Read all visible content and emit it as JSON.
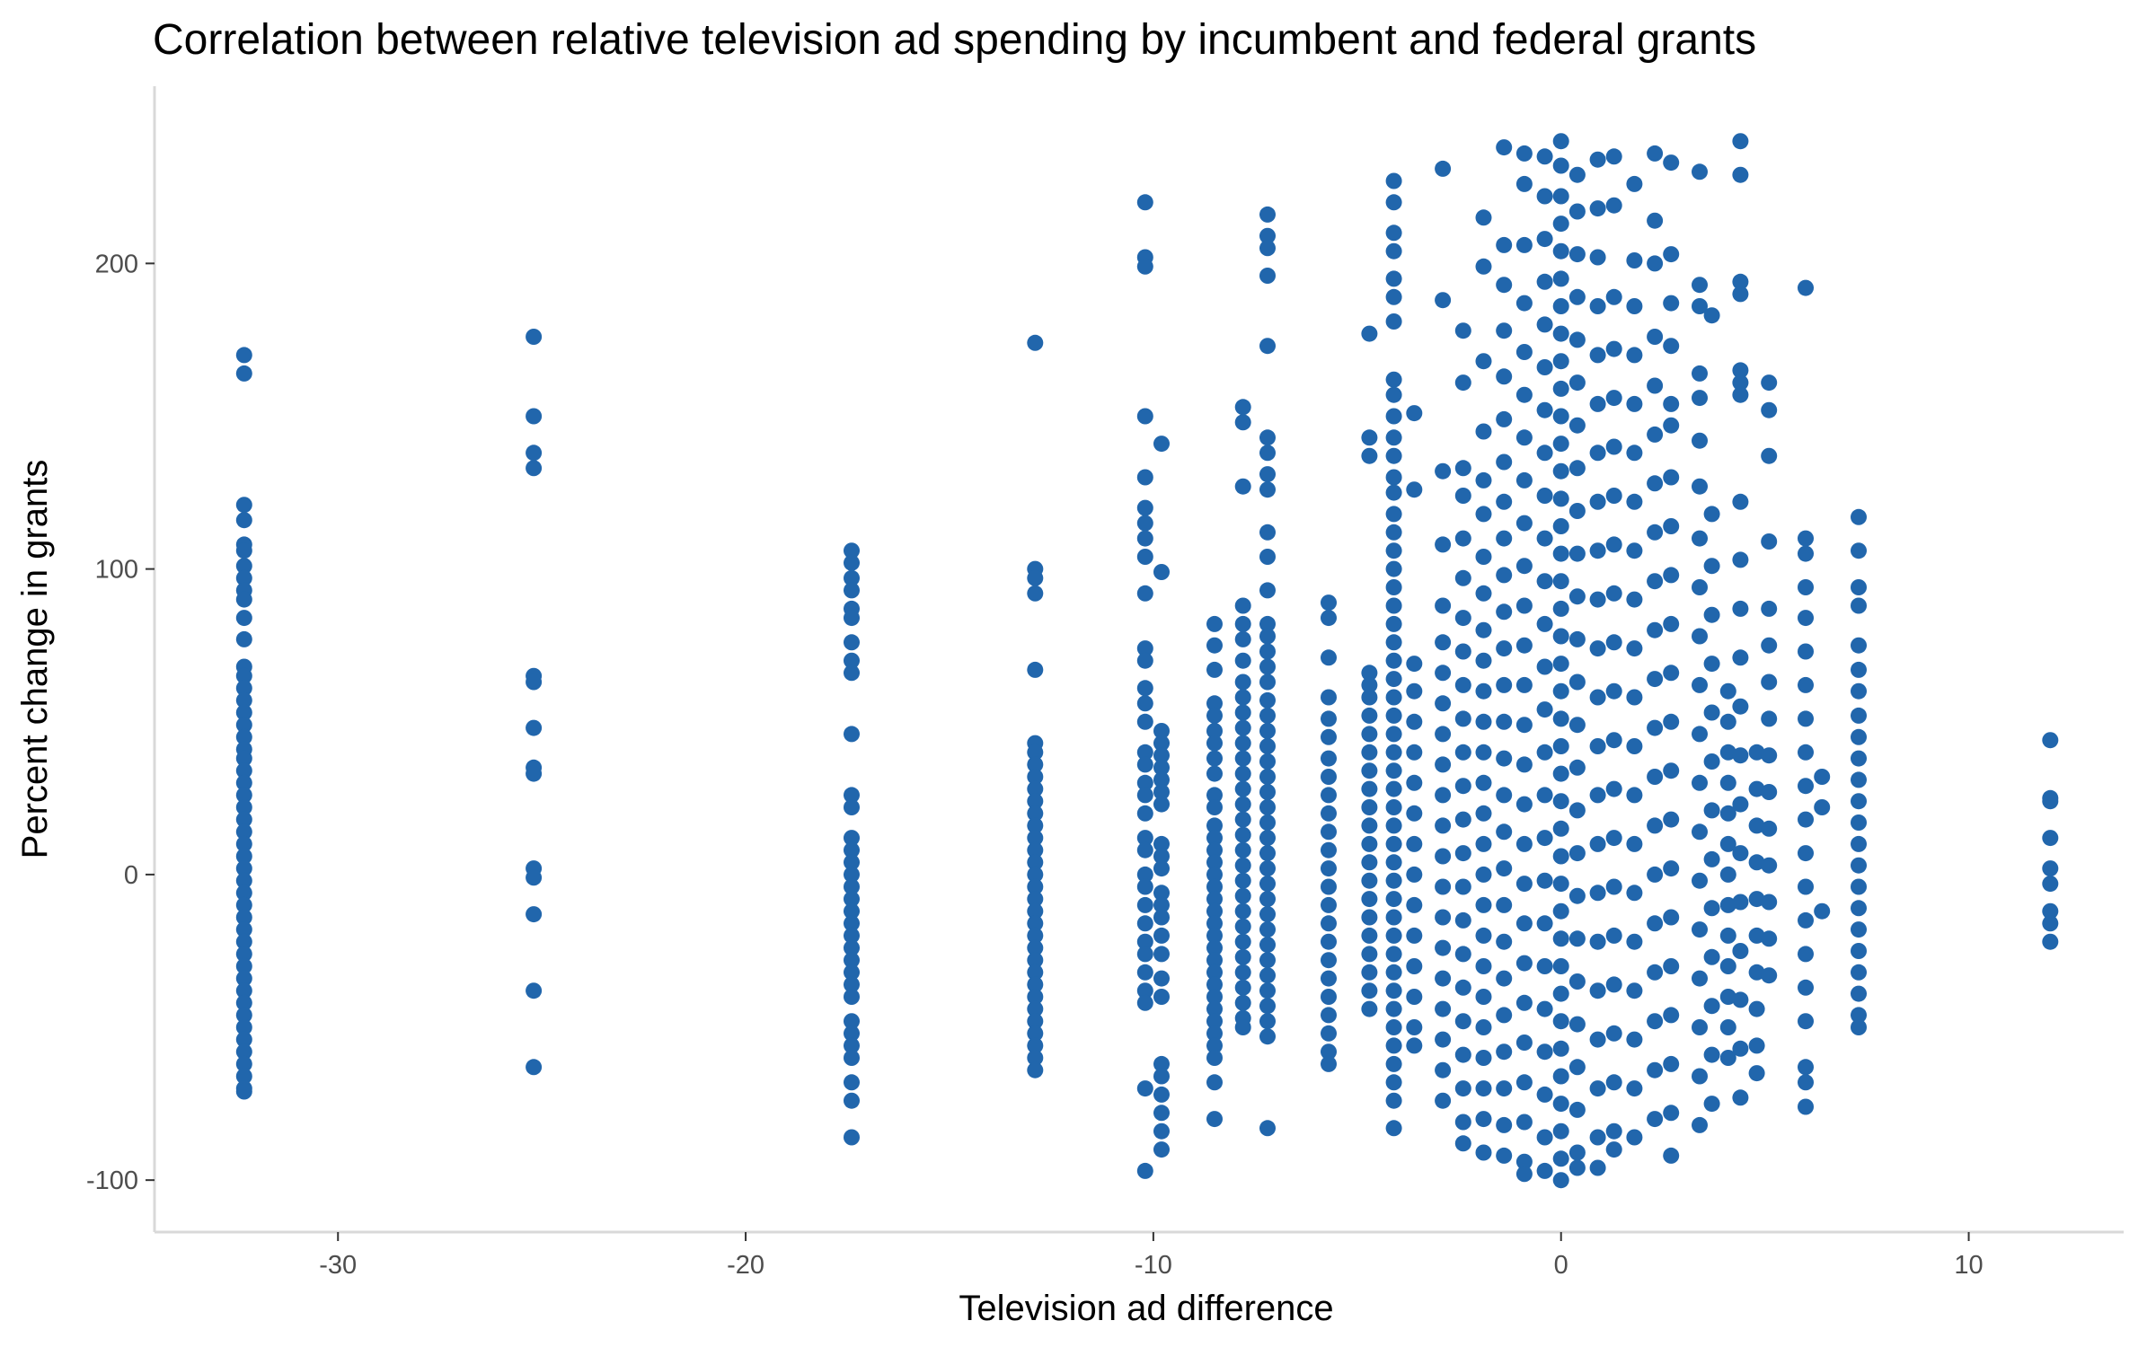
{
  "chart_data": {
    "type": "scatter",
    "title": "Correlation between relative television ad spending by incumbent and federal grants",
    "xlabel": "Television ad difference",
    "ylabel": "Percent change in grants",
    "xlim": [
      -34.5,
      13.8
    ],
    "ylim": [
      -117,
      258
    ],
    "x_ticks": [
      -30,
      -20,
      -10,
      0,
      10
    ],
    "y_ticks": [
      -100,
      0,
      100,
      200
    ],
    "x_tick_labels": [
      "-30",
      "-20",
      "-10",
      "0",
      "10"
    ],
    "y_tick_labels": [
      "-100",
      "0",
      "100",
      "200"
    ],
    "grid": false,
    "legend": "none",
    "point_color": "#2166ac",
    "columns": [
      {
        "x": -32.3,
        "y": [
          170,
          164,
          121,
          116,
          108,
          106,
          101,
          97,
          93,
          90,
          84,
          77,
          68,
          65,
          61,
          57,
          53,
          49,
          45,
          41,
          38,
          34,
          30,
          26,
          22,
          18,
          14,
          10,
          6,
          2,
          -2,
          -6,
          -10,
          -14,
          -18,
          -22,
          -26,
          -30,
          -34,
          -38,
          -42,
          -46,
          -50,
          -54,
          -58,
          -62,
          -66,
          -70,
          -71
        ]
      },
      {
        "x": -25.2,
        "y": [
          176,
          150,
          138,
          133,
          65,
          63,
          48,
          35,
          33,
          2,
          -1,
          -13,
          -38,
          -63
        ]
      },
      {
        "x": -17.4,
        "y": [
          106,
          102,
          97,
          93,
          87,
          84,
          76,
          70,
          66,
          46,
          26,
          22,
          12,
          8,
          4,
          0,
          -4,
          -8,
          -12,
          -16,
          -20,
          -24,
          -28,
          -32,
          -36,
          -40,
          -48,
          -52,
          -56,
          -60,
          -68,
          -74,
          -86
        ]
      },
      {
        "x": -12.9,
        "y": [
          174,
          100,
          97,
          92,
          67,
          43,
          40,
          36,
          32,
          28,
          24,
          20,
          16,
          12,
          8,
          4,
          0,
          -4,
          -8,
          -12,
          -16,
          -20,
          -24,
          -28,
          -32,
          -36,
          -40,
          -44,
          -48,
          -52,
          -56,
          -60,
          -64
        ]
      },
      {
        "x": -10.2,
        "y": [
          220,
          202,
          199,
          150,
          130,
          120,
          115,
          110,
          104,
          92,
          74,
          70,
          61,
          56,
          50,
          40,
          36,
          30,
          26,
          20,
          12,
          8,
          0,
          -4,
          -10,
          -16,
          -22,
          -26,
          -32,
          -38,
          -42,
          -70,
          -97
        ]
      },
      {
        "x": -9.8,
        "y": [
          141,
          99,
          47,
          43,
          39,
          35,
          31,
          27,
          23,
          10,
          6,
          2,
          -6,
          -10,
          -14,
          -20,
          -26,
          -34,
          -40,
          -62,
          -66,
          -72,
          -78,
          -84,
          -90
        ]
      },
      {
        "x": -8.5,
        "y": [
          82,
          75,
          67,
          56,
          52,
          47,
          43,
          38,
          33,
          26,
          22,
          16,
          12,
          8,
          4,
          0,
          -4,
          -8,
          -12,
          -16,
          -20,
          -24,
          -28,
          -32,
          -36,
          -40,
          -44,
          -48,
          -52,
          -56,
          -60,
          -68,
          -80
        ]
      },
      {
        "x": -7.8,
        "y": [
          153,
          148,
          127,
          88,
          82,
          77,
          70,
          63,
          58,
          53,
          48,
          43,
          38,
          33,
          28,
          23,
          18,
          13,
          8,
          3,
          -2,
          -7,
          -12,
          -17,
          -22,
          -27,
          -32,
          -37,
          -42,
          -47,
          -50
        ]
      },
      {
        "x": -7.2,
        "y": [
          216,
          209,
          205,
          196,
          173,
          143,
          138,
          131,
          126,
          112,
          104,
          93,
          82,
          78,
          73,
          68,
          63,
          57,
          52,
          47,
          42,
          37,
          32,
          27,
          22,
          17,
          12,
          7,
          2,
          -3,
          -8,
          -13,
          -18,
          -23,
          -28,
          -33,
          -38,
          -43,
          -48,
          -53,
          -83
        ]
      },
      {
        "x": -5.7,
        "y": [
          89,
          84,
          71,
          58,
          51,
          45,
          38,
          32,
          26,
          20,
          14,
          8,
          2,
          -4,
          -10,
          -16,
          -22,
          -28,
          -34,
          -40,
          -46,
          -52,
          -58,
          -62
        ]
      },
      {
        "x": -4.7,
        "y": [
          177,
          143,
          137,
          66,
          62,
          58,
          52,
          46,
          40,
          34,
          28,
          22,
          16,
          10,
          4,
          -2,
          -8,
          -14,
          -20,
          -26,
          -32,
          -38,
          -44
        ]
      },
      {
        "x": -4.1,
        "y": [
          227,
          220,
          210,
          204,
          195,
          189,
          181,
          162,
          157,
          150,
          143,
          137,
          130,
          125,
          118,
          112,
          106,
          100,
          94,
          88,
          82,
          76,
          70,
          64,
          58,
          52,
          46,
          40,
          34,
          28,
          22,
          16,
          10,
          4,
          -2,
          -8,
          -14,
          -20,
          -26,
          -32,
          -38,
          -44,
          -50,
          -56,
          -62,
          -68,
          -74,
          -83
        ]
      },
      {
        "x": -3.6,
        "y": [
          151,
          126,
          69,
          60,
          50,
          40,
          30,
          20,
          10,
          0,
          -10,
          -20,
          -30,
          -40,
          -50,
          -56
        ]
      },
      {
        "x": -2.9,
        "y": [
          231,
          188,
          132,
          108,
          88,
          76,
          66,
          56,
          46,
          36,
          26,
          16,
          6,
          -4,
          -14,
          -24,
          -34,
          -44,
          -54,
          -64,
          -74
        ]
      },
      {
        "x": -2.4,
        "y": [
          178,
          161,
          133,
          124,
          110,
          97,
          84,
          73,
          62,
          51,
          40,
          29,
          18,
          7,
          -4,
          -15,
          -26,
          -37,
          -48,
          -59,
          -70,
          -81,
          -88
        ]
      },
      {
        "x": -1.9,
        "y": [
          215,
          199,
          168,
          145,
          129,
          118,
          104,
          92,
          80,
          70,
          60,
          50,
          40,
          30,
          20,
          10,
          0,
          -10,
          -20,
          -30,
          -40,
          -50,
          -60,
          -70,
          -80,
          -91
        ]
      },
      {
        "x": -1.4,
        "y": [
          238,
          206,
          193,
          178,
          163,
          149,
          135,
          122,
          110,
          98,
          86,
          74,
          62,
          50,
          38,
          26,
          14,
          2,
          -10,
          -22,
          -34,
          -46,
          -58,
          -70,
          -82,
          -92
        ]
      },
      {
        "x": -0.9,
        "y": [
          236,
          226,
          206,
          187,
          171,
          157,
          143,
          129,
          115,
          101,
          88,
          75,
          62,
          49,
          36,
          23,
          10,
          -3,
          -16,
          -29,
          -42,
          -55,
          -68,
          -81,
          -94,
          -98
        ]
      },
      {
        "x": -0.4,
        "y": [
          235,
          222,
          208,
          194,
          180,
          166,
          152,
          138,
          124,
          110,
          96,
          82,
          68,
          54,
          40,
          26,
          12,
          -2,
          -16,
          -30,
          -44,
          -58,
          -72,
          -86,
          -97
        ]
      },
      {
        "x": 0,
        "y": [
          240,
          232,
          222,
          213,
          204,
          195,
          186,
          177,
          168,
          159,
          150,
          141,
          132,
          123,
          114,
          105,
          96,
          87,
          78,
          69,
          60,
          51,
          42,
          33,
          24,
          15,
          6,
          -3,
          -12,
          -21,
          -30,
          -39,
          -48,
          -57,
          -66,
          -75,
          -84,
          -93,
          -100
        ]
      },
      {
        "x": 0.4,
        "y": [
          229,
          217,
          203,
          189,
          175,
          161,
          147,
          133,
          119,
          105,
          91,
          77,
          63,
          49,
          35,
          21,
          7,
          -7,
          -21,
          -35,
          -49,
          -63,
          -77,
          -91,
          -96
        ]
      },
      {
        "x": 0.9,
        "y": [
          234,
          218,
          202,
          186,
          170,
          154,
          138,
          122,
          106,
          90,
          74,
          58,
          42,
          26,
          10,
          -6,
          -22,
          -38,
          -54,
          -70,
          -86,
          -96
        ]
      },
      {
        "x": 1.3,
        "y": [
          235,
          219,
          189,
          172,
          156,
          140,
          124,
          108,
          92,
          76,
          60,
          44,
          28,
          12,
          -4,
          -20,
          -36,
          -52,
          -68,
          -84,
          -90
        ]
      },
      {
        "x": 1.8,
        "y": [
          226,
          201,
          186,
          170,
          154,
          138,
          122,
          106,
          90,
          74,
          58,
          42,
          26,
          10,
          -6,
          -22,
          -38,
          -54,
          -70,
          -86
        ]
      },
      {
        "x": 2.3,
        "y": [
          236,
          214,
          200,
          176,
          160,
          144,
          128,
          112,
          96,
          80,
          64,
          48,
          32,
          16,
          0,
          -16,
          -32,
          -48,
          -64,
          -80
        ]
      },
      {
        "x": 2.7,
        "y": [
          233,
          203,
          187,
          173,
          154,
          147,
          130,
          114,
          98,
          82,
          66,
          50,
          34,
          18,
          2,
          -14,
          -30,
          -46,
          -62,
          -78,
          -92
        ]
      },
      {
        "x": 3.4,
        "y": [
          230,
          193,
          186,
          164,
          156,
          142,
          127,
          110,
          94,
          78,
          62,
          46,
          30,
          14,
          -2,
          -18,
          -34,
          -50,
          -66,
          -82
        ]
      },
      {
        "x": 3.7,
        "y": [
          183,
          118,
          101,
          85,
          69,
          53,
          37,
          21,
          5,
          -11,
          -27,
          -43,
          -59,
          -75
        ]
      },
      {
        "x": 4.1,
        "y": [
          60,
          50,
          40,
          30,
          20,
          10,
          0,
          -10,
          -20,
          -30,
          -40,
          -50,
          -60
        ]
      },
      {
        "x": 4.4,
        "y": [
          240,
          229,
          194,
          190,
          165,
          161,
          157,
          122,
          103,
          87,
          71,
          55,
          39,
          23,
          7,
          -9,
          -25,
          -41,
          -57,
          -73
        ]
      },
      {
        "x": 4.8,
        "y": [
          40,
          28,
          16,
          4,
          -8,
          -20,
          -32,
          -44,
          -56,
          -65
        ]
      },
      {
        "x": 5.1,
        "y": [
          161,
          152,
          137,
          109,
          87,
          75,
          63,
          51,
          39,
          27,
          15,
          3,
          -9,
          -21,
          -33
        ]
      },
      {
        "x": 6,
        "y": [
          192,
          110,
          105,
          94,
          84,
          73,
          62,
          51,
          40,
          29,
          18,
          7,
          -4,
          -15,
          -26,
          -37,
          -48,
          -63,
          -68,
          -76
        ]
      },
      {
        "x": 6.4,
        "y": [
          32,
          22,
          -12
        ]
      },
      {
        "x": 7.3,
        "y": [
          117,
          106,
          94,
          88,
          75,
          67,
          60,
          52,
          45,
          38,
          31,
          24,
          17,
          10,
          3,
          -4,
          -11,
          -18,
          -25,
          -32,
          -39,
          -46,
          -50
        ]
      },
      {
        "x": 12,
        "y": [
          44,
          25,
          24,
          12,
          2,
          -3,
          -12,
          -16,
          -22
        ]
      }
    ]
  }
}
